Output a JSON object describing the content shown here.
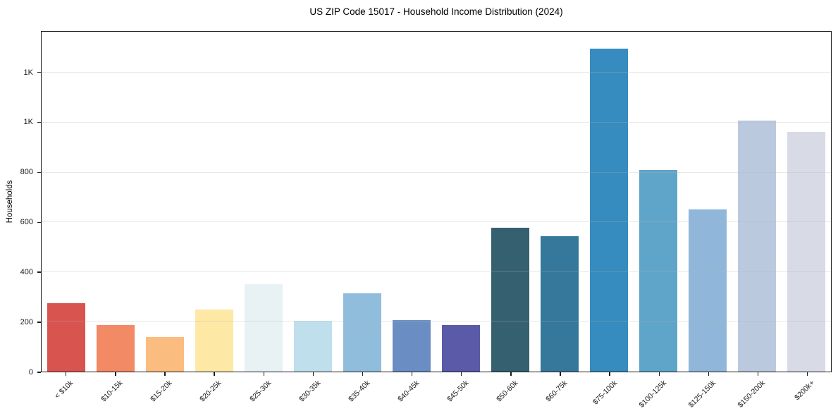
{
  "chart_data": {
    "type": "bar",
    "title": "US ZIP Code 15017 - Household Income Distribution (2024)",
    "xlabel": "",
    "ylabel": "Households",
    "categories": [
      "< $10k",
      "$10-15k",
      "$15-20k",
      "$20-25k",
      "$25-30k",
      "$30-35k",
      "$35-40k",
      "$40-45k",
      "$45-50k",
      "$50-60k",
      "$60-75k",
      "$75-100k",
      "$100-125k",
      "$125-150k",
      "$150-200k",
      "$200k+"
    ],
    "values": [
      275,
      188,
      140,
      250,
      350,
      205,
      313,
      207,
      186,
      578,
      544,
      1298,
      810,
      650,
      1008,
      963
    ],
    "colors": [
      "#d8544f",
      "#f28a66",
      "#fbbc80",
      "#fde8a6",
      "#e8f2f5",
      "#bfdfec",
      "#90bddc",
      "#6a8ec4",
      "#5b5aa9",
      "#35606f",
      "#35789b",
      "#368cbe",
      "#5fa5c9",
      "#90b7d9",
      "#bbc9de",
      "#d8dae6"
    ],
    "ylim": [
      0,
      1365
    ],
    "yticks": [
      {
        "value": 0,
        "label": "0"
      },
      {
        "value": 200,
        "label": "200"
      },
      {
        "value": 400,
        "label": "400"
      },
      {
        "value": 600,
        "label": "600"
      },
      {
        "value": 800,
        "label": "800"
      },
      {
        "value": 1000,
        "label": "1K"
      },
      {
        "value": 1200,
        "label": "1K"
      }
    ],
    "grid": "horizontal",
    "legend": "none",
    "x_tick_rotation_deg": 45
  }
}
